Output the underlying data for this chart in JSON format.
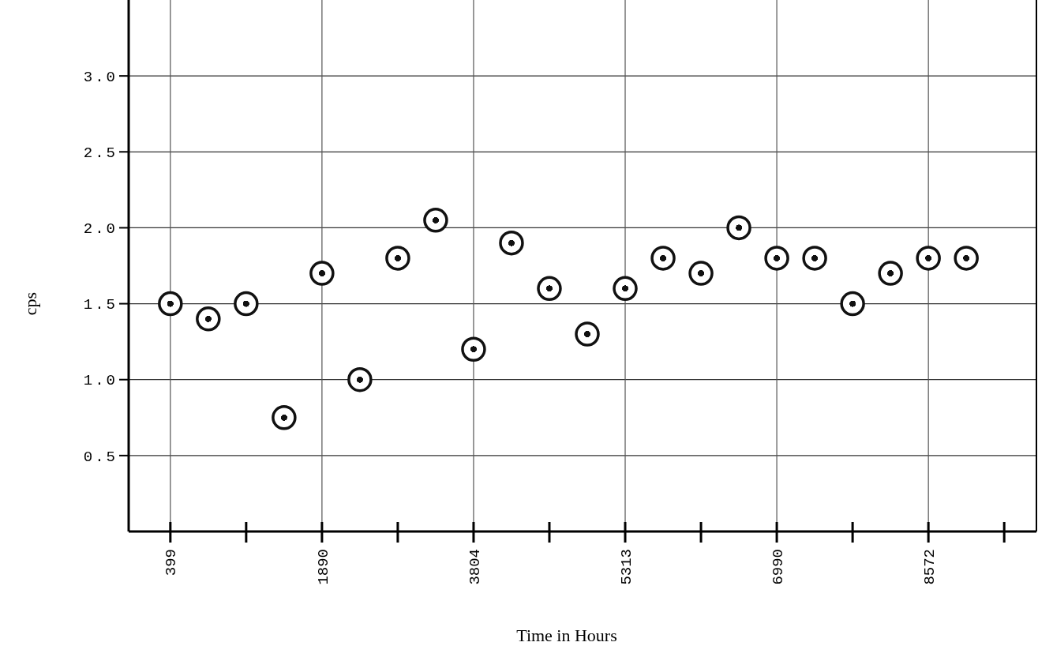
{
  "chart_data": {
    "type": "scatter",
    "xlabel": "Time in Hours",
    "ylabel": "cps",
    "categories": [
      "399",
      null,
      null,
      null,
      "1890",
      null,
      null,
      null,
      "3804",
      null,
      null,
      null,
      "5313",
      null,
      null,
      null,
      "6990",
      null,
      null,
      null,
      "8572",
      null,
      null
    ],
    "series": [
      {
        "color": "#111111",
        "values": [
          1.5,
          1.4,
          1.5,
          0.75,
          1.7,
          1.0,
          1.8,
          2.05,
          1.2,
          1.9,
          1.6,
          1.3,
          1.6,
          1.8,
          1.7,
          2.0,
          1.8,
          1.8,
          1.5,
          1.7,
          1.8,
          1.8,
          null
        ]
      }
    ],
    "ylim": [
      0,
      3.5
    ],
    "yticks": [
      {
        "value": 0.5,
        "label": "0.5"
      },
      {
        "value": 1.0,
        "label": "1.0"
      },
      {
        "value": 1.5,
        "label": "1.5"
      },
      {
        "value": 2.0,
        "label": "2.0"
      },
      {
        "value": 2.5,
        "label": "2.5"
      },
      {
        "value": 3.0,
        "label": "3.0"
      }
    ],
    "grid": true,
    "marker": "circle"
  }
}
